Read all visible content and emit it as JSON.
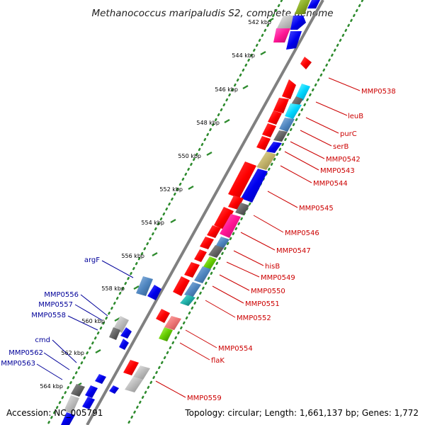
{
  "title": "Methanococcus maripaludis S2, complete genome",
  "footer": {
    "accession": "Accession: NC_005791",
    "topology": "Topology: circular; Length: 1,661,137 bp; Genes: 1,772"
  },
  "colors": {
    "right_label": "#cc0000",
    "left_label": "#000099",
    "backbone": "#808080",
    "tick": "#2e8b2e"
  },
  "ticks": [
    "542 kbp",
    "544 kbp",
    "546 kbp",
    "548 kbp",
    "550 kbp",
    "552 kbp",
    "554 kbp",
    "556 kbp",
    "558 kbp",
    "560 kbp",
    "562 kbp",
    "564 kbp"
  ],
  "right_labels": [
    "MMP0538",
    "leuB",
    "purC",
    "serB",
    "MMP0542",
    "MMP0543",
    "MMP0544",
    "MMP0545",
    "MMP0546",
    "MMP0547",
    "hisB",
    "MMP0549",
    "MMP0550",
    "MMP0551",
    "MMP0552",
    "MMP0554",
    "flaK",
    "MMP0559"
  ],
  "left_labels": [
    "argF",
    "MMP0556",
    "MMP0557",
    "MMP0558",
    "cmd",
    "MMP0562",
    "MMP0563"
  ]
}
